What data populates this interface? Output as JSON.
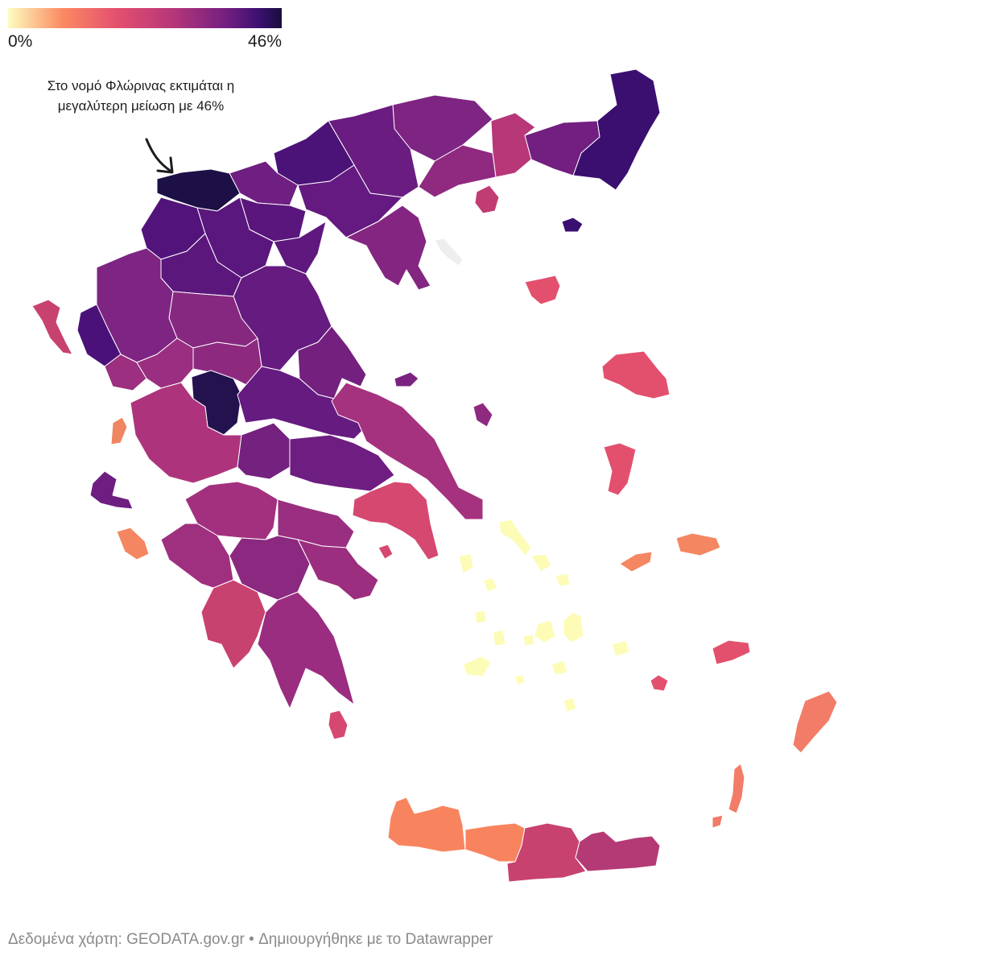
{
  "legend": {
    "min_label": "0%",
    "max_label": "46%",
    "min": 0,
    "max": 46,
    "colors": [
      "#fcfdbf",
      "#fc8961",
      "#e34f6f",
      "#b73779",
      "#721f81",
      "#3b0f70",
      "#160f3b"
    ]
  },
  "annotation": {
    "line1": "Στο νομό Φλώρινας εκτιμάται η",
    "line2": "μεγαλύτερη μείωση με 46%"
  },
  "footer": {
    "source": "Δεδομένα χάρτη: GEODATA.gov.gr",
    "credit": "• Δημιουργήθηκε με το Datawrapper"
  }
}
